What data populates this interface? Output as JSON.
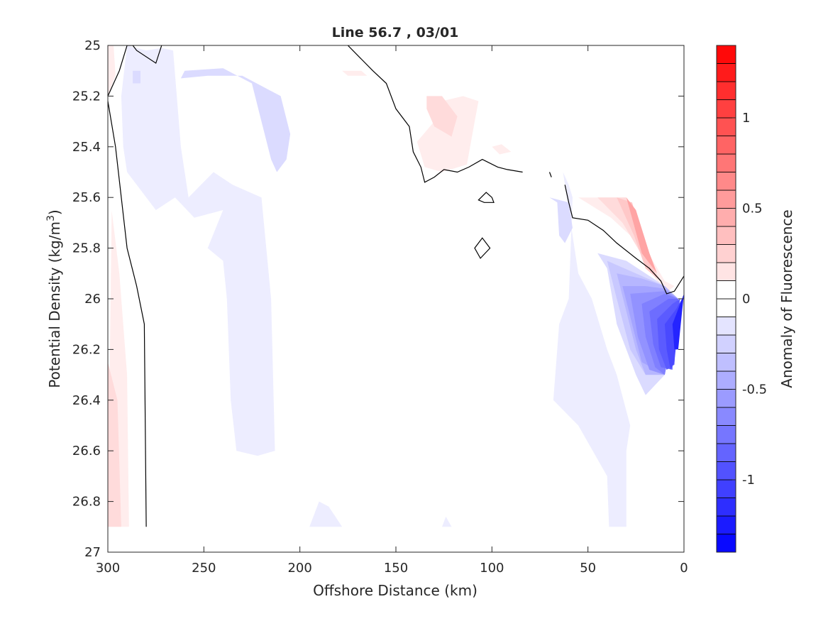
{
  "chart_data": {
    "type": "heatmap",
    "subtype": "filled-contour",
    "title": "Line 56.7 , 03/01",
    "xlabel": "Offshore Distance (km)",
    "ylabel_main": "Potential Density (kg/m",
    "ylabel_sup": "3",
    "ylabel_close": ")",
    "colorbar_label": "Anomaly of Fluorescence",
    "xlim": [
      300,
      0
    ],
    "ylim": [
      27,
      25
    ],
    "x_reversed": true,
    "y_reversed": true,
    "xticks": [
      300,
      250,
      200,
      150,
      100,
      50,
      0
    ],
    "xtick_labels": [
      "300",
      "250",
      "200",
      "150",
      "100",
      "50",
      "0"
    ],
    "yticks": [
      25,
      25.2,
      25.4,
      25.6,
      25.8,
      26,
      26.2,
      26.4,
      26.6,
      26.8,
      27
    ],
    "ytick_labels": [
      "25",
      "25.2",
      "25.4",
      "25.6",
      "25.8",
      "26",
      "26.2",
      "26.4",
      "26.6",
      "26.8",
      "27"
    ],
    "colorbar": {
      "range": [
        -1.4,
        1.4
      ],
      "step": 0.1,
      "ticks": [
        1,
        0.5,
        0,
        -0.5,
        -1
      ],
      "tick_labels": [
        "1",
        "0.5",
        "0",
        "-0.5",
        "-1"
      ],
      "colormap": "blue-white-red",
      "low_color": "#0000ff",
      "mid_color": "#ffffff",
      "high_color": "#ff0000"
    },
    "regions": [
      {
        "level": 0.1,
        "points": [
          [
            300,
            25.0
          ],
          [
            297,
            25.0
          ],
          [
            296,
            25.12
          ],
          [
            300,
            25.2
          ]
        ]
      },
      {
        "level": 0.1,
        "points": [
          [
            298,
            25.65
          ],
          [
            294,
            25.9
          ],
          [
            290,
            26.3
          ],
          [
            289,
            26.9
          ],
          [
            300,
            26.9
          ]
        ]
      },
      {
        "level": 0.2,
        "points": [
          [
            300,
            26.25
          ],
          [
            295,
            26.4
          ],
          [
            293,
            26.9
          ],
          [
            300,
            26.9
          ]
        ]
      },
      {
        "level": 0.1,
        "points": [
          [
            126,
            25.22
          ],
          [
            130,
            25.3
          ],
          [
            139,
            25.38
          ],
          [
            135,
            25.48
          ],
          [
            126,
            25.5
          ],
          [
            113,
            25.47
          ],
          [
            109,
            25.3
          ],
          [
            107,
            25.22
          ],
          [
            115,
            25.2
          ]
        ]
      },
      {
        "level": 0.2,
        "points": [
          [
            134,
            25.2
          ],
          [
            126,
            25.2
          ],
          [
            118,
            25.28
          ],
          [
            121,
            25.36
          ],
          [
            130,
            25.32
          ],
          [
            134,
            25.25
          ]
        ]
      },
      {
        "level": 0.1,
        "points": [
          [
            178,
            25.1
          ],
          [
            168,
            25.1
          ],
          [
            165,
            25.12
          ],
          [
            175,
            25.12
          ]
        ]
      },
      {
        "level": 0.1,
        "points": [
          [
            100,
            25.4
          ],
          [
            95,
            25.39
          ],
          [
            90,
            25.42
          ],
          [
            96,
            25.43
          ]
        ]
      },
      {
        "level": 0.1,
        "points": [
          [
            55,
            25.6
          ],
          [
            30,
            25.6
          ],
          [
            20,
            25.8
          ],
          [
            10,
            25.93
          ],
          [
            5,
            25.95
          ],
          [
            10,
            25.98
          ],
          [
            18,
            25.88
          ],
          [
            28,
            25.75
          ],
          [
            38,
            25.68
          ]
        ]
      },
      {
        "level": 0.2,
        "points": [
          [
            45,
            25.6
          ],
          [
            30,
            25.6
          ],
          [
            22,
            25.8
          ],
          [
            12,
            25.93
          ],
          [
            17,
            25.9
          ],
          [
            24,
            25.8
          ],
          [
            32,
            25.7
          ]
        ]
      },
      {
        "level": 0.3,
        "points": [
          [
            35,
            25.6
          ],
          [
            27,
            25.62
          ],
          [
            20,
            25.8
          ],
          [
            14,
            25.92
          ],
          [
            20,
            25.88
          ],
          [
            26,
            25.75
          ]
        ]
      },
      {
        "level": 0.5,
        "points": [
          [
            30,
            25.6
          ],
          [
            25,
            25.65
          ],
          [
            18,
            25.82
          ],
          [
            14,
            25.9
          ],
          [
            22,
            25.82
          ]
        ]
      },
      {
        "level": -0.1,
        "points": [
          [
            290,
            25.0
          ],
          [
            280,
            25.02
          ],
          [
            272,
            25.01
          ],
          [
            266,
            25.02
          ],
          [
            262,
            25.4
          ],
          [
            258,
            25.6
          ],
          [
            245,
            25.5
          ],
          [
            235,
            25.55
          ],
          [
            220,
            25.6
          ],
          [
            215,
            26.0
          ],
          [
            213,
            26.6
          ],
          [
            222,
            26.62
          ],
          [
            233,
            26.6
          ],
          [
            236,
            26.4
          ],
          [
            237,
            26.2
          ],
          [
            238,
            26.0
          ],
          [
            240,
            25.85
          ],
          [
            248,
            25.8
          ],
          [
            240,
            25.65
          ],
          [
            255,
            25.68
          ],
          [
            265,
            25.6
          ],
          [
            275,
            25.65
          ],
          [
            290,
            25.5
          ],
          [
            292,
            25.4
          ],
          [
            293,
            25.2
          ]
        ]
      },
      {
        "level": -0.1,
        "points": [
          [
            63,
            25.5
          ],
          [
            60,
            25.55
          ],
          [
            58,
            25.6
          ],
          [
            59,
            25.8
          ],
          [
            60,
            26.0
          ],
          [
            65,
            26.1
          ],
          [
            68,
            26.4
          ],
          [
            55,
            26.5
          ],
          [
            40,
            26.7
          ],
          [
            39,
            26.9
          ],
          [
            30,
            26.9
          ],
          [
            30,
            26.6
          ],
          [
            28,
            26.5
          ],
          [
            35,
            26.3
          ],
          [
            40,
            26.2
          ],
          [
            48,
            26.0
          ],
          [
            55,
            25.9
          ]
        ]
      },
      {
        "level": -0.1,
        "points": [
          [
            195,
            26.9
          ],
          [
            190,
            26.8
          ],
          [
            185,
            26.82
          ],
          [
            178,
            26.9
          ]
        ]
      },
      {
        "level": -0.1,
        "points": [
          [
            126,
            26.9
          ],
          [
            124,
            26.86
          ],
          [
            121,
            26.9
          ]
        ]
      },
      {
        "level": -0.2,
        "points": [
          [
            287,
            25.1
          ],
          [
            283,
            25.1
          ],
          [
            283,
            25.15
          ],
          [
            287,
            25.15
          ]
        ]
      },
      {
        "level": -0.2,
        "points": [
          [
            260,
            25.1
          ],
          [
            240,
            25.09
          ],
          [
            225,
            25.15
          ],
          [
            220,
            25.3
          ],
          [
            215,
            25.45
          ],
          [
            212,
            25.5
          ],
          [
            207,
            25.45
          ],
          [
            205,
            25.35
          ],
          [
            210,
            25.2
          ],
          [
            230,
            25.12
          ],
          [
            248,
            25.12
          ],
          [
            262,
            25.13
          ]
        ]
      },
      {
        "level": -0.2,
        "points": [
          [
            70,
            25.6
          ],
          [
            66,
            25.62
          ],
          [
            65,
            25.75
          ],
          [
            62,
            25.78
          ],
          [
            58,
            25.72
          ],
          [
            60,
            25.62
          ]
        ]
      },
      {
        "level": -0.2,
        "points": [
          [
            45,
            25.82
          ],
          [
            40,
            25.88
          ],
          [
            35,
            26.1
          ],
          [
            25,
            26.3
          ],
          [
            20,
            26.38
          ],
          [
            10,
            26.3
          ],
          [
            5,
            26.1
          ],
          [
            3,
            26.0
          ],
          [
            10,
            25.95
          ],
          [
            20,
            25.9
          ],
          [
            30,
            25.85
          ]
        ]
      },
      {
        "level": -0.3,
        "points": [
          [
            40,
            25.85
          ],
          [
            35,
            26.0
          ],
          [
            28,
            26.2
          ],
          [
            20,
            26.3
          ],
          [
            10,
            26.3
          ],
          [
            5,
            26.1
          ],
          [
            3,
            26.0
          ],
          [
            10,
            25.95
          ],
          [
            25,
            25.9
          ]
        ]
      },
      {
        "level": -0.4,
        "points": [
          [
            35,
            25.9
          ],
          [
            30,
            26.05
          ],
          [
            25,
            26.2
          ],
          [
            20,
            26.3
          ],
          [
            10,
            26.3
          ],
          [
            5,
            26.1
          ],
          [
            3,
            26.0
          ],
          [
            10,
            25.95
          ],
          [
            22,
            25.92
          ]
        ]
      },
      {
        "level": -0.5,
        "points": [
          [
            32,
            25.95
          ],
          [
            27,
            26.1
          ],
          [
            22,
            26.25
          ],
          [
            10,
            26.3
          ],
          [
            5,
            26.1
          ],
          [
            3,
            26.0
          ],
          [
            10,
            25.96
          ],
          [
            20,
            25.95
          ]
        ]
      },
      {
        "level": -0.6,
        "points": [
          [
            28,
            25.98
          ],
          [
            24,
            26.15
          ],
          [
            18,
            26.28
          ],
          [
            10,
            26.3
          ],
          [
            5,
            26.1
          ],
          [
            3,
            26.0
          ],
          [
            10,
            25.97
          ]
        ]
      },
      {
        "level": -0.7,
        "points": [
          [
            22,
            26.02
          ],
          [
            20,
            26.15
          ],
          [
            15,
            26.27
          ],
          [
            10,
            26.3
          ],
          [
            5,
            26.1
          ],
          [
            3,
            26.0
          ],
          [
            10,
            25.98
          ]
        ]
      },
      {
        "level": -0.8,
        "points": [
          [
            18,
            26.05
          ],
          [
            16,
            26.18
          ],
          [
            12,
            26.27
          ],
          [
            6,
            26.28
          ],
          [
            5,
            26.1
          ],
          [
            3,
            26.0
          ],
          [
            8,
            26.0
          ]
        ]
      },
      {
        "level": -0.9,
        "points": [
          [
            14,
            26.08
          ],
          [
            13,
            26.2
          ],
          [
            9,
            26.28
          ],
          [
            5,
            26.26
          ],
          [
            4,
            26.1
          ],
          [
            2,
            26.0
          ],
          [
            6,
            26.02
          ]
        ]
      },
      {
        "level": -1.0,
        "points": [
          [
            10,
            26.1
          ],
          [
            9,
            26.2
          ],
          [
            7,
            26.28
          ],
          [
            5,
            26.25
          ],
          [
            3,
            26.1
          ],
          [
            1,
            26.0
          ],
          [
            4,
            26.04
          ]
        ]
      },
      {
        "level": -1.2,
        "points": [
          [
            6,
            26.1
          ],
          [
            5,
            26.2
          ],
          [
            3,
            26.2
          ],
          [
            1,
            26.05
          ],
          [
            0,
            25.98
          ]
        ]
      }
    ],
    "zero_contours": [
      {
        "closed": false,
        "points": [
          [
            300,
            25.22
          ],
          [
            296,
            25.4
          ],
          [
            290,
            25.8
          ],
          [
            285,
            25.95
          ],
          [
            281,
            26.1
          ],
          [
            280,
            26.9
          ]
        ]
      },
      {
        "closed": false,
        "points": [
          [
            300,
            25.2
          ],
          [
            294,
            25.1
          ],
          [
            290,
            25.0
          ],
          [
            287,
            25.0
          ],
          [
            285,
            25.02
          ],
          [
            275,
            25.07
          ],
          [
            272,
            25.0
          ]
        ]
      },
      {
        "closed": false,
        "points": [
          [
            175,
            25.0
          ],
          [
            162,
            25.1
          ],
          [
            155,
            25.15
          ],
          [
            150,
            25.25
          ],
          [
            143,
            25.32
          ],
          [
            141,
            25.42
          ],
          [
            137,
            25.48
          ],
          [
            135,
            25.54
          ],
          [
            130,
            25.52
          ],
          [
            125,
            25.49
          ],
          [
            118,
            25.5
          ],
          [
            112,
            25.48
          ],
          [
            105,
            25.45
          ],
          [
            97,
            25.48
          ],
          [
            92,
            25.49
          ],
          [
            84,
            25.5
          ]
        ]
      },
      {
        "closed": false,
        "points": [
          [
            70,
            25.5
          ],
          [
            69,
            25.52
          ]
        ]
      },
      {
        "closed": false,
        "points": [
          [
            62,
            25.55
          ],
          [
            60,
            25.62
          ],
          [
            58,
            25.68
          ],
          [
            50,
            25.69
          ],
          [
            42,
            25.73
          ],
          [
            35,
            25.78
          ],
          [
            25,
            25.84
          ],
          [
            18,
            25.88
          ],
          [
            12,
            25.93
          ],
          [
            9,
            25.98
          ],
          [
            5,
            25.97
          ],
          [
            0,
            25.91
          ]
        ]
      },
      {
        "closed": true,
        "points": [
          [
            103,
            25.58
          ],
          [
            100,
            25.6
          ],
          [
            99,
            25.62
          ],
          [
            104,
            25.62
          ],
          [
            107,
            25.61
          ]
        ]
      },
      {
        "closed": true,
        "points": [
          [
            105,
            25.76
          ],
          [
            101,
            25.8
          ],
          [
            106,
            25.84
          ],
          [
            109,
            25.8
          ]
        ]
      }
    ]
  }
}
